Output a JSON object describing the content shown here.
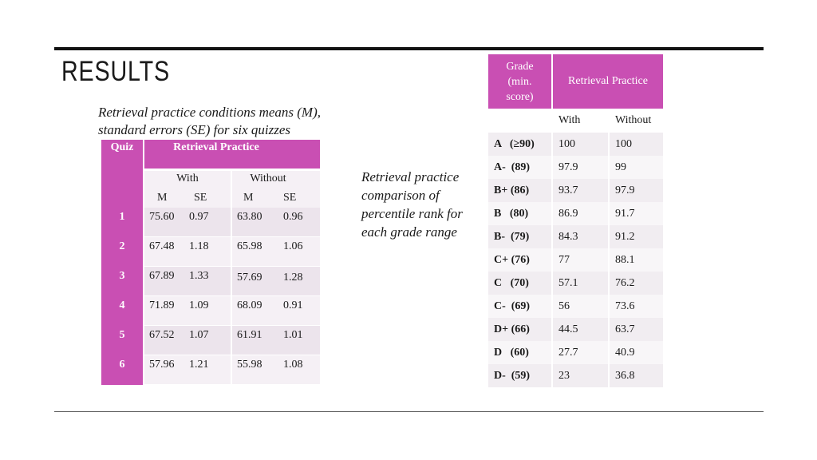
{
  "title": "RESULTS",
  "caption_left": "Retrieval practice conditions means (M), standard errors (SE) for six quizzes",
  "caption_right": "Retrieval practice comparison of percentile rank for each grade range",
  "table1": {
    "quiz_header": "Quiz",
    "group_header": "Retrieval Practice",
    "with": "With",
    "without": "Without",
    "m": "M",
    "se": "SE",
    "rows": [
      {
        "quiz": "1",
        "with_m": "75.60",
        "with_se": "0.97",
        "without_m": "63.80",
        "without_se": "0.96"
      },
      {
        "quiz": "2",
        "with_m": "67.48",
        "with_se": "1.18",
        "without_m": "65.98",
        "without_se": "1.06"
      },
      {
        "quiz": "3",
        "with_m": "67.89",
        "with_se": "1.33",
        "without_m": "57.69",
        "without_se": "1.28"
      },
      {
        "quiz": "4",
        "with_m": "71.89",
        "with_se": "1.09",
        "without_m": "68.09",
        "without_se": "0.91"
      },
      {
        "quiz": "5",
        "with_m": "67.52",
        "with_se": "1.07",
        "without_m": "61.91",
        "without_se": "1.01"
      },
      {
        "quiz": "6",
        "with_m": "57.96",
        "with_se": "1.21",
        "without_m": "55.98",
        "without_se": "1.08"
      }
    ]
  },
  "table2": {
    "grade_header_l1": "Grade",
    "grade_header_l2": "(min.",
    "grade_header_l3": "score)",
    "group_header": "Retrieval Practice",
    "with": "With",
    "without": "Without",
    "rows": [
      {
        "grade": "A   (≥90)",
        "with": "100",
        "without": "100"
      },
      {
        "grade": "A-  (89)",
        "with": "97.9",
        "without": "99"
      },
      {
        "grade": "B+ (86)",
        "with": "93.7",
        "without": "97.9"
      },
      {
        "grade": "B   (80)",
        "with": "86.9",
        "without": "91.7"
      },
      {
        "grade": "B-  (79)",
        "with": "84.3",
        "without": "91.2"
      },
      {
        "grade": "C+ (76)",
        "with": "77",
        "without": "88.1"
      },
      {
        "grade": "C   (70)",
        "with": "57.1",
        "without": "76.2"
      },
      {
        "grade": "C-  (69)",
        "with": "56",
        "without": "73.6"
      },
      {
        "grade": "D+ (66)",
        "with": "44.5",
        "without": "63.7"
      },
      {
        "grade": "D   (60)",
        "with": "27.7",
        "without": "40.9"
      },
      {
        "grade": "D-  (59)",
        "with": "23",
        "without": "36.8"
      }
    ]
  }
}
